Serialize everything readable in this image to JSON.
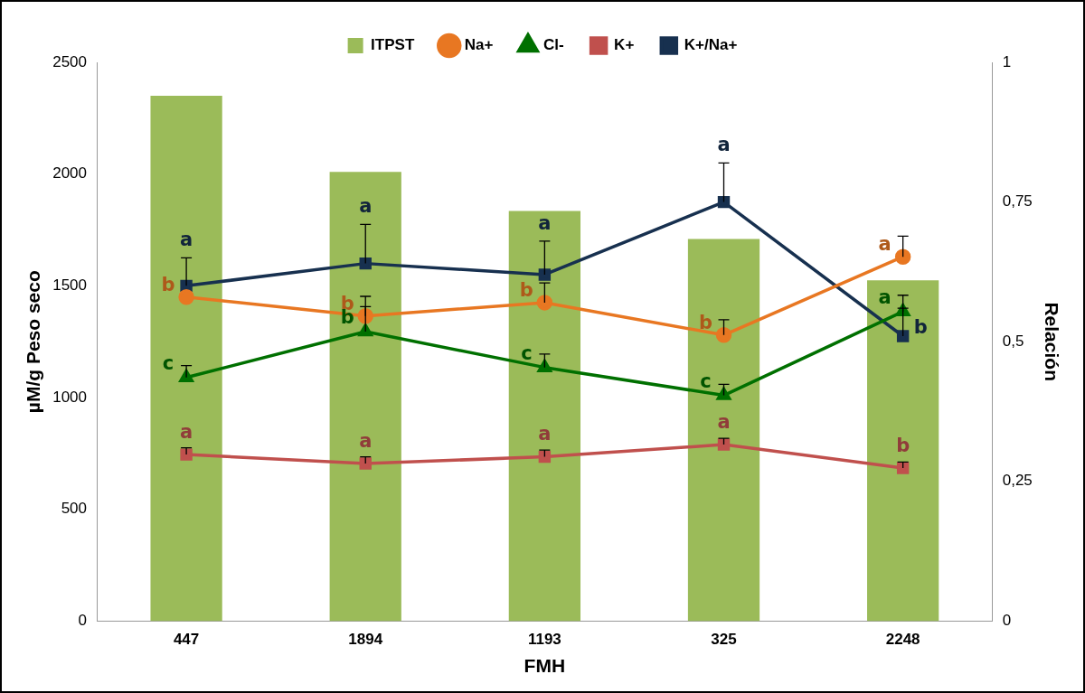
{
  "chart_data": {
    "type": "bar",
    "categories": [
      "447",
      "1894",
      "1193",
      "325",
      "2248"
    ],
    "xlabel": "FMH",
    "ylabel": "µM/g Peso seco",
    "y2label": "Relación",
    "ylim": [
      0,
      2500
    ],
    "yticks": [
      0,
      500,
      1000,
      1500,
      2000,
      2500
    ],
    "y2lim": [
      0,
      1
    ],
    "y2ticks": [
      0,
      {
        "value": 0.25,
        "label": "0,25"
      },
      {
        "value": 0.5,
        "label": "0,5"
      },
      {
        "value": 0.75,
        "label": "0,75"
      },
      1
    ],
    "grid": false,
    "legend": "top",
    "line_style": "solid",
    "series": [
      {
        "name": "ITPST",
        "color": "#9bbb59",
        "values": [
          2350,
          2010,
          1835,
          1710,
          1525
        ]
      },
      {
        "name": "Na+",
        "type": "line",
        "marker": "circle",
        "color": "#e87722",
        "values": [
          1450,
          1365,
          1425,
          1280,
          1630
        ],
        "errors": [
          null,
          [
            1365,
            1453
          ],
          [
            1425,
            1513
          ],
          [
            1280,
            1348
          ],
          [
            1630,
            1722
          ]
        ],
        "value_labels": [
          "b",
          "b",
          "b",
          "b",
          "a"
        ]
      },
      {
        "name": "Cl-",
        "type": "line",
        "marker": "triangle",
        "color": "#007000",
        "values": [
          1090,
          1295,
          1135,
          1010,
          1385
        ],
        "errors": [
          [
            1090,
            1143
          ],
          [
            1295,
            1407
          ],
          [
            1135,
            1195
          ],
          [
            1010,
            1059
          ],
          [
            1385,
            1458
          ]
        ],
        "value_labels": [
          "c",
          "b",
          "c",
          "c",
          "a"
        ]
      },
      {
        "name": "K+",
        "type": "line",
        "marker": "square",
        "color": "#c0504d",
        "values": [
          745,
          705,
          735,
          790,
          685
        ],
        "errors": [
          [
            745,
            775
          ],
          [
            705,
            735
          ],
          [
            735,
            765
          ],
          [
            790,
            818
          ],
          [
            685,
            712
          ]
        ],
        "value_labels": [
          "a",
          "a",
          "a",
          "a",
          "b"
        ]
      },
      {
        "name": "K+/Na+",
        "type": "line",
        "marker": "square",
        "axis": "y2",
        "color": "#17304f",
        "values": [
          0.6,
          0.64,
          0.62,
          0.75,
          0.51
        ],
        "errors": [
          [
            0.6,
            0.65
          ],
          [
            0.64,
            0.71
          ],
          [
            0.62,
            0.68
          ],
          [
            0.75,
            0.82
          ],
          [
            0.51,
            0.56
          ]
        ],
        "value_labels": [
          "a",
          "a",
          "a",
          "a",
          "b"
        ]
      }
    ]
  }
}
